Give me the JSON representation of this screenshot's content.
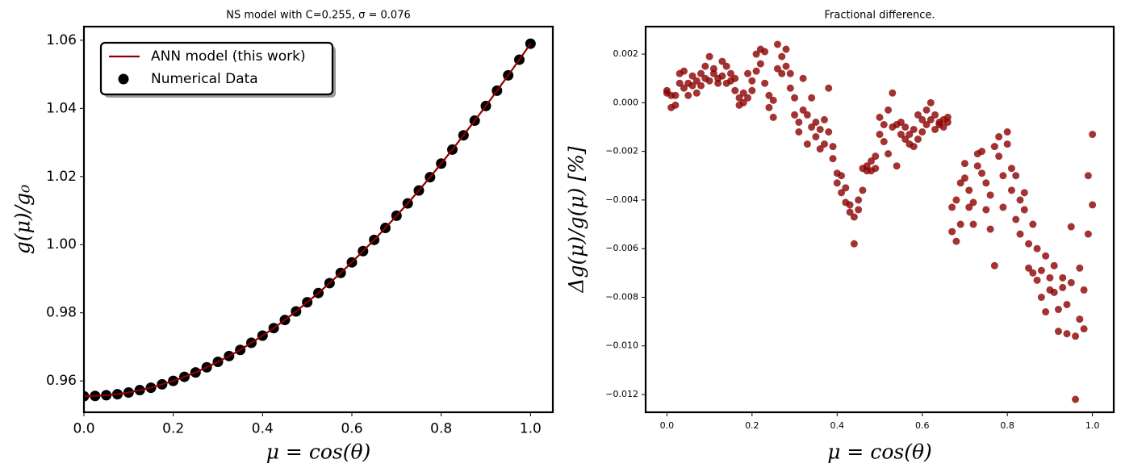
{
  "chart_data": [
    {
      "type": "line",
      "title": "NS model with C=0.255, σ = 0.076",
      "xlabel": "μ = cos(θ)",
      "ylabel": "g(μ)/g₀",
      "xlim": [
        0,
        1.05
      ],
      "ylim": [
        0.9508,
        1.064
      ],
      "xticks": [
        {
          "value": 0,
          "label": "0.0"
        },
        0.2,
        0.4,
        0.6,
        0.8,
        {
          "value": 1,
          "label": "1.0"
        }
      ],
      "yticks": [
        0.96,
        0.98,
        {
          "value": 1,
          "label": "1.00"
        },
        1.02,
        1.04,
        1.06
      ],
      "legend": "upper left",
      "series": [
        {
          "name": "ANN model (this work)",
          "style": "line",
          "color": "#8b0000",
          "x": [
            0,
            0.025,
            0.05,
            0.075,
            0.1,
            0.125,
            0.15,
            0.175,
            0.2,
            0.225,
            0.25,
            0.275,
            0.3,
            0.325,
            0.35,
            0.375,
            0.4,
            0.425,
            0.45,
            0.475,
            0.5,
            0.525,
            0.55,
            0.575,
            0.6,
            0.625,
            0.65,
            0.675,
            0.7,
            0.725,
            0.75,
            0.775,
            0.8,
            0.825,
            0.85,
            0.875,
            0.9,
            0.925,
            0.95,
            0.975,
            1
          ],
          "values": [
            0.9555,
            0.9556,
            0.9558,
            0.9561,
            0.9566,
            0.9573,
            0.958,
            0.959,
            0.96,
            0.9612,
            0.9625,
            0.964,
            0.9656,
            0.9673,
            0.9691,
            0.9712,
            0.9733,
            0.9755,
            0.9779,
            0.9804,
            0.9831,
            0.9858,
            0.9887,
            0.9917,
            0.9948,
            0.9981,
            1.0014,
            1.0049,
            1.0085,
            1.0121,
            1.0159,
            1.0198,
            1.0238,
            1.0279,
            1.0321,
            1.0364,
            1.0407,
            1.0452,
            1.0497,
            1.0543,
            1.059
          ]
        },
        {
          "name": "Numerical Data",
          "style": "scatter",
          "color": "#000000",
          "x": [
            0,
            0.025,
            0.05,
            0.075,
            0.1,
            0.125,
            0.15,
            0.175,
            0.2,
            0.225,
            0.25,
            0.275,
            0.3,
            0.325,
            0.35,
            0.375,
            0.4,
            0.425,
            0.45,
            0.475,
            0.5,
            0.525,
            0.55,
            0.575,
            0.6,
            0.625,
            0.65,
            0.675,
            0.7,
            0.725,
            0.75,
            0.775,
            0.8,
            0.825,
            0.85,
            0.875,
            0.9,
            0.925,
            0.95,
            0.975,
            1
          ],
          "values": [
            0.9555,
            0.9556,
            0.9558,
            0.9561,
            0.9566,
            0.9573,
            0.958,
            0.959,
            0.96,
            0.9612,
            0.9625,
            0.964,
            0.9656,
            0.9673,
            0.9691,
            0.9712,
            0.9733,
            0.9755,
            0.9779,
            0.9804,
            0.9831,
            0.9858,
            0.9887,
            0.9917,
            0.9948,
            0.9981,
            1.0014,
            1.0049,
            1.0085,
            1.0121,
            1.0159,
            1.0198,
            1.0238,
            1.0279,
            1.0321,
            1.0364,
            1.0407,
            1.0452,
            1.0497,
            1.0543,
            1.059
          ]
        }
      ]
    },
    {
      "type": "scatter",
      "title": "Fractional difference.",
      "xlabel": "μ = cos(θ)",
      "ylabel": "Δg(μ)/g(μ)  [%]",
      "xlim": [
        -0.05,
        1.05
      ],
      "ylim": [
        -0.01273,
        0.00313
      ],
      "xticks": [
        {
          "value": 0,
          "label": "0.0"
        },
        0.2,
        0.4,
        0.6,
        0.8,
        {
          "value": 1,
          "label": "1.0"
        }
      ],
      "yticks": [
        {
          "value": -0.012,
          "label": "−0.012"
        },
        {
          "value": -0.01,
          "label": "−0.010"
        },
        {
          "value": -0.008,
          "label": "−0.008"
        },
        {
          "value": -0.006,
          "label": "−0.006"
        },
        {
          "value": -0.004,
          "label": "−0.004"
        },
        {
          "value": -0.002,
          "label": "−0.002"
        },
        {
          "value": 0,
          "label": "0.000"
        },
        0.002
      ],
      "series": [
        {
          "style": "scatter",
          "color": "#8b0000",
          "alpha": 0.8,
          "x": [
            0,
            0,
            0.01,
            0.01,
            0.02,
            0.02,
            0.03,
            0.03,
            0.04,
            0.04,
            0.05,
            0.05,
            0.06,
            0.06,
            0.07,
            0.07,
            0.08,
            0.08,
            0.09,
            0.09,
            0.1,
            0.1,
            0.11,
            0.11,
            0.12,
            0.12,
            0.13,
            0.13,
            0.14,
            0.14,
            0.15,
            0.15,
            0.16,
            0.16,
            0.17,
            0.17,
            0.18,
            0.18,
            0.19,
            0.19,
            0.2,
            0.2,
            0.21,
            0.21,
            0.22,
            0.22,
            0.23,
            0.23,
            0.24,
            0.24,
            0.25,
            0.25,
            0.26,
            0.26,
            0.27,
            0.27,
            0.28,
            0.28,
            0.29,
            0.29,
            0.3,
            0.3,
            0.31,
            0.31,
            0.32,
            0.32,
            0.33,
            0.33,
            0.34,
            0.34,
            0.35,
            0.35,
            0.36,
            0.36,
            0.37,
            0.37,
            0.38,
            0.38,
            0.39,
            0.39,
            0.4,
            0.4,
            0.41,
            0.41,
            0.42,
            0.42,
            0.43,
            0.43,
            0.44,
            0.44,
            0.45,
            0.45,
            0.46,
            0.46,
            0.47,
            0.47,
            0.48,
            0.48,
            0.49,
            0.49,
            0.5,
            0.5,
            0.51,
            0.51,
            0.52,
            0.52,
            0.53,
            0.53,
            0.54,
            0.54,
            0.55,
            0.55,
            0.56,
            0.56,
            0.57,
            0.57,
            0.58,
            0.58,
            0.59,
            0.59,
            0.6,
            0.6,
            0.61,
            0.61,
            0.62,
            0.62,
            0.63,
            0.63,
            0.64,
            0.64,
            0.65,
            0.65,
            0.66,
            0.66,
            0.67,
            0.67,
            0.68,
            0.68,
            0.69,
            0.69,
            0.7,
            0.7,
            0.71,
            0.71,
            0.72,
            0.72,
            0.73,
            0.73,
            0.74,
            0.74,
            0.75,
            0.75,
            0.76,
            0.76,
            0.77,
            0.77,
            0.78,
            0.78,
            0.79,
            0.79,
            0.8,
            0.8,
            0.81,
            0.81,
            0.82,
            0.82,
            0.83,
            0.83,
            0.84,
            0.84,
            0.85,
            0.85,
            0.86,
            0.86,
            0.87,
            0.87,
            0.88,
            0.88,
            0.89,
            0.89,
            0.9,
            0.9,
            0.91,
            0.91,
            0.92,
            0.92,
            0.93,
            0.93,
            0.94,
            0.94,
            0.95,
            0.95,
            0.96,
            0.96,
            0.97,
            0.97,
            0.98,
            0.98,
            0.99,
            0.99,
            1,
            1
          ],
          "values": [
            0.0005,
            0.0004,
            0.0003,
            -0.0002,
            -0.0001,
            0.0003,
            0.0008,
            0.0012,
            0.0006,
            0.0013,
            0.0008,
            0.0003,
            0.0007,
            0.0011,
            0.0009,
            0.0004,
            0.0012,
            0.0007,
            0.001,
            0.0015,
            0.0019,
            0.0009,
            0.0012,
            0.0014,
            0.001,
            0.0008,
            0.0017,
            0.0011,
            0.0015,
            0.0008,
            0.0012,
            0.0009,
            0.0005,
            0.001,
            0.0002,
            -0.0001,
            0,
            0.0004,
            0.0012,
            0.0002,
            0.0009,
            0.0005,
            0.0013,
            0.002,
            0.0022,
            0.0016,
            0.0008,
            0.0021,
            -0.0002,
            0.0003,
            -0.0006,
            0.0001,
            0.0014,
            0.0024,
            0.0019,
            0.0012,
            0.0022,
            0.0015,
            0.0006,
            0.0012,
            -0.0005,
            0.0002,
            -0.0012,
            -0.0008,
            -0.0003,
            0.001,
            -0.0005,
            -0.0017,
            -0.001,
            0.0002,
            -0.0014,
            -0.0008,
            -0.0011,
            -0.0019,
            -0.0007,
            -0.0017,
            -0.0012,
            0.0006,
            -0.0023,
            -0.0018,
            -0.0029,
            -0.0033,
            -0.0037,
            -0.003,
            -0.0041,
            -0.0035,
            -0.0045,
            -0.0042,
            -0.0058,
            -0.0047,
            -0.004,
            -0.0044,
            -0.0036,
            -0.0027,
            -0.0028,
            -0.0026,
            -0.0024,
            -0.0028,
            -0.0022,
            -0.0027,
            -0.0013,
            -0.0006,
            -0.0009,
            -0.0016,
            -0.0003,
            -0.0021,
            0.0004,
            -0.001,
            -0.0026,
            -0.0009,
            -0.0008,
            -0.0013,
            -0.001,
            -0.0015,
            -0.0013,
            -0.0017,
            -0.0018,
            -0.0011,
            -0.0015,
            -0.0005,
            -0.0007,
            -0.0012,
            -0.0003,
            -0.0009,
            -0.0007,
            0,
            -0.0011,
            -0.0005,
            -0.0009,
            -0.0008,
            -0.001,
            -0.0007,
            -0.0006,
            -0.0008,
            -0.0043,
            -0.0053,
            -0.0057,
            -0.004,
            -0.0033,
            -0.005,
            -0.0031,
            -0.0025,
            -0.0036,
            -0.0043,
            -0.0041,
            -0.005,
            -0.0021,
            -0.0026,
            -0.0029,
            -0.002,
            -0.0033,
            -0.0044,
            -0.0038,
            -0.0052,
            -0.0018,
            -0.0067,
            -0.0022,
            -0.0014,
            -0.003,
            -0.0043,
            -0.0012,
            -0.0017,
            -0.0027,
            -0.0036,
            -0.003,
            -0.0048,
            -0.004,
            -0.0054,
            -0.0044,
            -0.0037,
            -0.0058,
            -0.0068,
            -0.005,
            -0.007,
            -0.006,
            -0.0073,
            -0.0069,
            -0.008,
            -0.0086,
            -0.0063,
            -0.0072,
            -0.0077,
            -0.0078,
            -0.0067,
            -0.0094,
            -0.0085,
            -0.0076,
            -0.0072,
            -0.0095,
            -0.0083,
            -0.0074,
            -0.0051,
            -0.0096,
            -0.0122,
            -0.0068,
            -0.0089,
            -0.0093,
            -0.0077,
            -0.003,
            -0.0054,
            -0.0013,
            -0.0042
          ]
        }
      ]
    }
  ]
}
